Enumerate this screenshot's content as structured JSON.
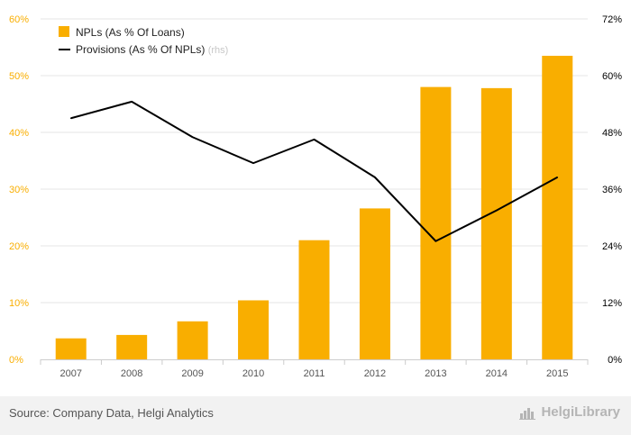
{
  "chart_data": {
    "type": "bar",
    "categories": [
      "2007",
      "2008",
      "2009",
      "2010",
      "2011",
      "2012",
      "2013",
      "2014",
      "2015"
    ],
    "series": [
      {
        "name": "NPLs (As % Of Loans)",
        "type": "bar",
        "axis": "left",
        "color": "#f9ae00",
        "values": [
          3.7,
          4.3,
          6.7,
          10.4,
          21.0,
          26.6,
          48.0,
          47.8,
          53.5
        ]
      },
      {
        "name": "Provisions (As % Of NPLs)",
        "name_suffix": "(rhs)",
        "type": "line",
        "axis": "right",
        "color": "#000000",
        "values": [
          51.0,
          54.5,
          47.0,
          41.5,
          46.5,
          38.5,
          25.0,
          31.5,
          38.5
        ]
      }
    ],
    "y_left": {
      "ylim": [
        0,
        60
      ],
      "ticks": [
        "0%",
        "10%",
        "20%",
        "30%",
        "40%",
        "50%",
        "60%"
      ],
      "tick_color": "#f9ae00"
    },
    "y_right": {
      "ylim": [
        0,
        72
      ],
      "ticks": [
        "0%",
        "12%",
        "24%",
        "36%",
        "48%",
        "60%",
        "72%"
      ],
      "tick_color": "#000000"
    },
    "grid": true,
    "legend_position": "top-left"
  },
  "footer": {
    "source": "Source: Company Data, Helgi Analytics",
    "brand": "HelgiLibrary"
  }
}
